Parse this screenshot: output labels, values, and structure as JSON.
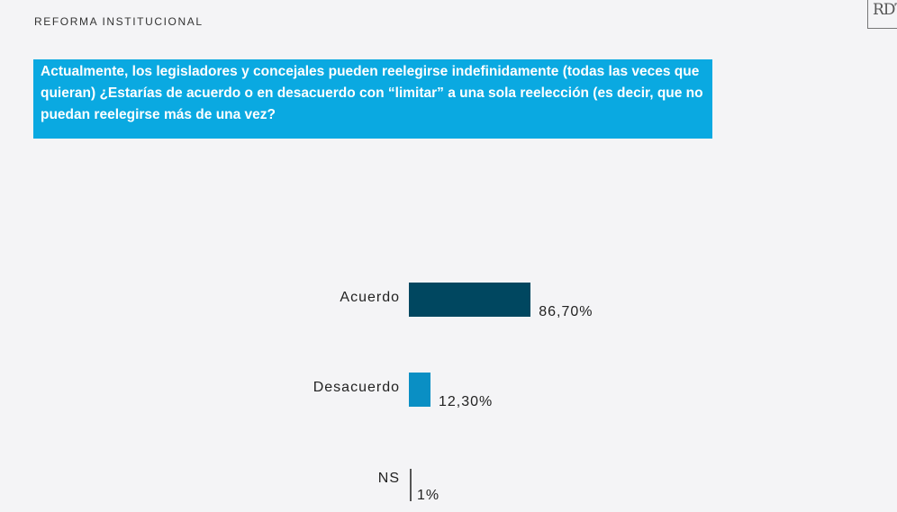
{
  "header": {
    "section": "REFORMA INSTITUCIONAL",
    "logo_text": "RDT"
  },
  "question": "Actualmente, los legisladores y concejales pueden reelegirse indefinidamente (todas las veces que quieran) ¿Estarías de acuerdo o en desacuerdo con “limitar” a una sola reelección (es decir, que no puedan reelegirse más de una vez?",
  "chart_data": {
    "type": "bar",
    "orientation": "horizontal",
    "categories": [
      "Acuerdo",
      "Desacuerdo",
      "NS"
    ],
    "values": [
      86.7,
      12.3,
      1
    ],
    "value_labels": [
      "86,70%",
      "12,30%",
      "1%"
    ],
    "colors": [
      "#004760",
      "#0a8fc4",
      "#555555"
    ],
    "title": "",
    "xlabel": "",
    "ylabel": "",
    "xlim": [
      0,
      100
    ]
  }
}
